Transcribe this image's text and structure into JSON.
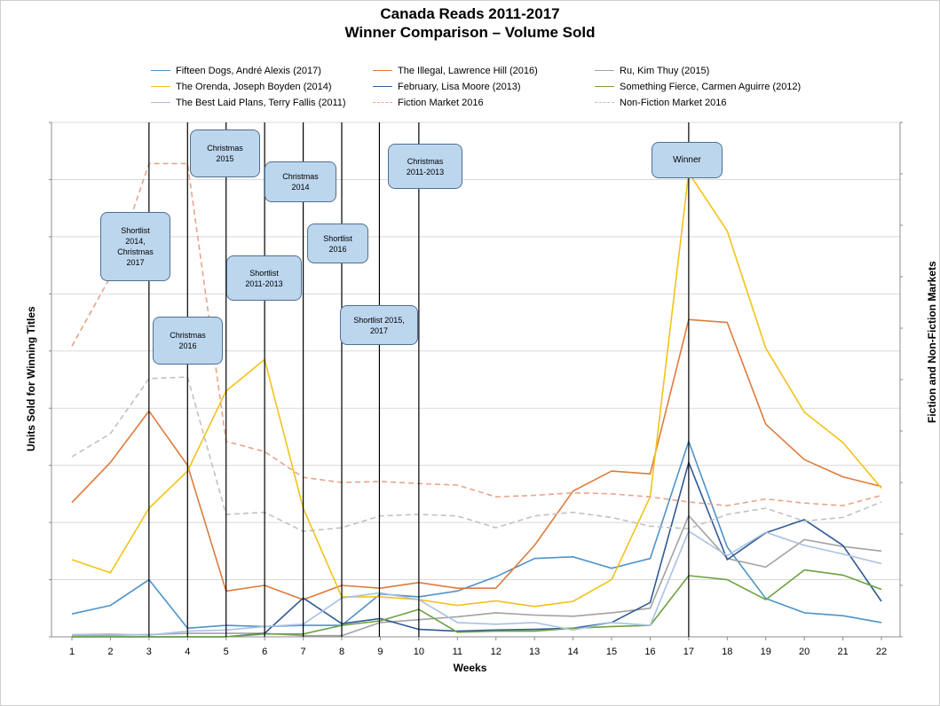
{
  "title_line1": "Canada Reads 2011-2017",
  "title_line2": "Winner Comparison – Volume Sold",
  "y_label_left": "Units Sold for Winning Titles",
  "y_label_right": "Fiction and Non-Fiction Markets",
  "x_label": "Weeks",
  "callouts": [
    {
      "key": "c1",
      "text": "Shortlist\n2014,\nChristmas\n2017"
    },
    {
      "key": "c2",
      "text": "Christmas\n2016"
    },
    {
      "key": "c3",
      "text": "Christmas\n2015"
    },
    {
      "key": "c4",
      "text": "Shortlist\n2011-2013"
    },
    {
      "key": "c5",
      "text": "Christmas\n2014"
    },
    {
      "key": "c6",
      "text": "Shortlist\n2016"
    },
    {
      "key": "c7",
      "text": "Shortlist 2015,\n2017"
    },
    {
      "key": "c8",
      "text": "Christmas\n2011-2013"
    },
    {
      "key": "c9",
      "text": "Winner"
    }
  ],
  "chart_data": {
    "type": "line",
    "title": "Canada Reads 2011-2017 Winner Comparison – Volume Sold",
    "xlabel": "Weeks",
    "ylabel": "Units Sold for Winning Titles",
    "y2label": "Fiction and Non-Fiction Markets",
    "x": [
      1,
      2,
      3,
      4,
      5,
      6,
      7,
      8,
      9,
      10,
      11,
      12,
      13,
      14,
      15,
      16,
      17,
      18,
      19,
      20,
      21,
      22
    ],
    "ylim": [
      0,
      9
    ],
    "y2lim": [
      0,
      10
    ],
    "grid": true,
    "legend_position": "top",
    "vertical_markers_weeks": [
      3,
      4,
      5,
      6,
      7,
      8,
      9,
      10,
      17
    ],
    "series": [
      {
        "name": "Fifteen Dogs, André Alexis (2017)",
        "color": "#4f93c8",
        "dash": "solid",
        "axis": "left",
        "values": [
          0.4,
          0.55,
          1.0,
          0.15,
          0.2,
          0.18,
          0.2,
          0.2,
          0.75,
          0.7,
          0.8,
          1.05,
          1.37,
          1.4,
          1.2,
          1.37,
          3.42,
          1.57,
          0.67,
          0.42,
          0.37,
          0.25
        ]
      },
      {
        "name": "The Illegal, Lawrence Hill (2016)",
        "color": "#de7b3d",
        "dash": "solid",
        "axis": "left",
        "values": [
          2.35,
          3.05,
          3.95,
          3.0,
          0.8,
          0.9,
          0.65,
          0.9,
          0.85,
          0.95,
          0.85,
          0.85,
          1.6,
          2.55,
          2.9,
          2.85,
          5.55,
          5.5,
          3.72,
          3.1,
          2.8,
          2.63
        ]
      },
      {
        "name": "Ru, Kim Thuy (2015)",
        "color": "#a2a2a2",
        "dash": "solid",
        "axis": "left",
        "values": [
          0.03,
          0.03,
          0.04,
          0.06,
          0.06,
          0.06,
          0.02,
          0.02,
          0.25,
          0.3,
          0.35,
          0.42,
          0.38,
          0.36,
          0.42,
          0.5,
          2.12,
          1.37,
          1.22,
          1.7,
          1.58,
          1.5
        ]
      },
      {
        "name": "The Orenda, Joseph Boyden (2014)",
        "color": "#f2c31a",
        "dash": "solid",
        "axis": "left",
        "values": [
          1.35,
          1.12,
          2.25,
          2.9,
          4.3,
          4.85,
          2.25,
          0.7,
          0.7,
          0.65,
          0.55,
          0.63,
          0.53,
          0.62,
          1.0,
          2.45,
          8.12,
          7.1,
          5.05,
          3.93,
          3.4,
          2.6
        ]
      },
      {
        "name": "February, Lisa Moore (2013)",
        "color": "#2f5a94",
        "dash": "solid",
        "axis": "left",
        "values": [
          0.0,
          0.0,
          0.0,
          0.0,
          0.0,
          0.06,
          0.68,
          0.23,
          0.32,
          0.13,
          0.1,
          0.12,
          0.13,
          0.15,
          0.25,
          0.6,
          3.05,
          1.35,
          1.82,
          2.05,
          1.6,
          0.62
        ]
      },
      {
        "name": "Something Fierce, Carmen Aguirre (2012)",
        "color": "#6aa33f",
        "dash": "solid",
        "axis": "left",
        "values": [
          0.0,
          0.0,
          0.0,
          0.0,
          0.0,
          0.05,
          0.05,
          0.2,
          0.28,
          0.48,
          0.08,
          0.1,
          0.1,
          0.15,
          0.18,
          0.2,
          1.07,
          1.0,
          0.65,
          1.17,
          1.08,
          0.83
        ]
      },
      {
        "name": "The Best Laid Plans, Terry Fallis (2011)",
        "color": "#a9c2e1",
        "dash": "solid",
        "axis": "left",
        "values": [
          0.04,
          0.05,
          0.03,
          0.1,
          0.12,
          0.18,
          0.22,
          0.68,
          0.77,
          0.65,
          0.25,
          0.22,
          0.25,
          0.12,
          0.25,
          0.2,
          1.85,
          1.42,
          1.83,
          1.6,
          1.45,
          1.28
        ]
      },
      {
        "name": "Fiction Market 2016",
        "color": "#e9a489",
        "dash": "dashed",
        "axis": "right",
        "values": [
          5.65,
          7.0,
          9.2,
          9.2,
          3.8,
          3.6,
          3.1,
          3.0,
          3.02,
          2.98,
          2.95,
          2.72,
          2.75,
          2.8,
          2.78,
          2.72,
          2.62,
          2.55,
          2.68,
          2.6,
          2.55,
          2.75
        ]
      },
      {
        "name": "Non-Fiction Market 2016",
        "color": "#c1c1c1",
        "dash": "dashed",
        "axis": "right",
        "values": [
          3.5,
          3.95,
          5.02,
          5.05,
          2.38,
          2.42,
          2.05,
          2.12,
          2.35,
          2.38,
          2.35,
          2.12,
          2.35,
          2.42,
          2.32,
          2.15,
          2.1,
          2.38,
          2.5,
          2.25,
          2.32,
          2.62
        ]
      }
    ]
  }
}
